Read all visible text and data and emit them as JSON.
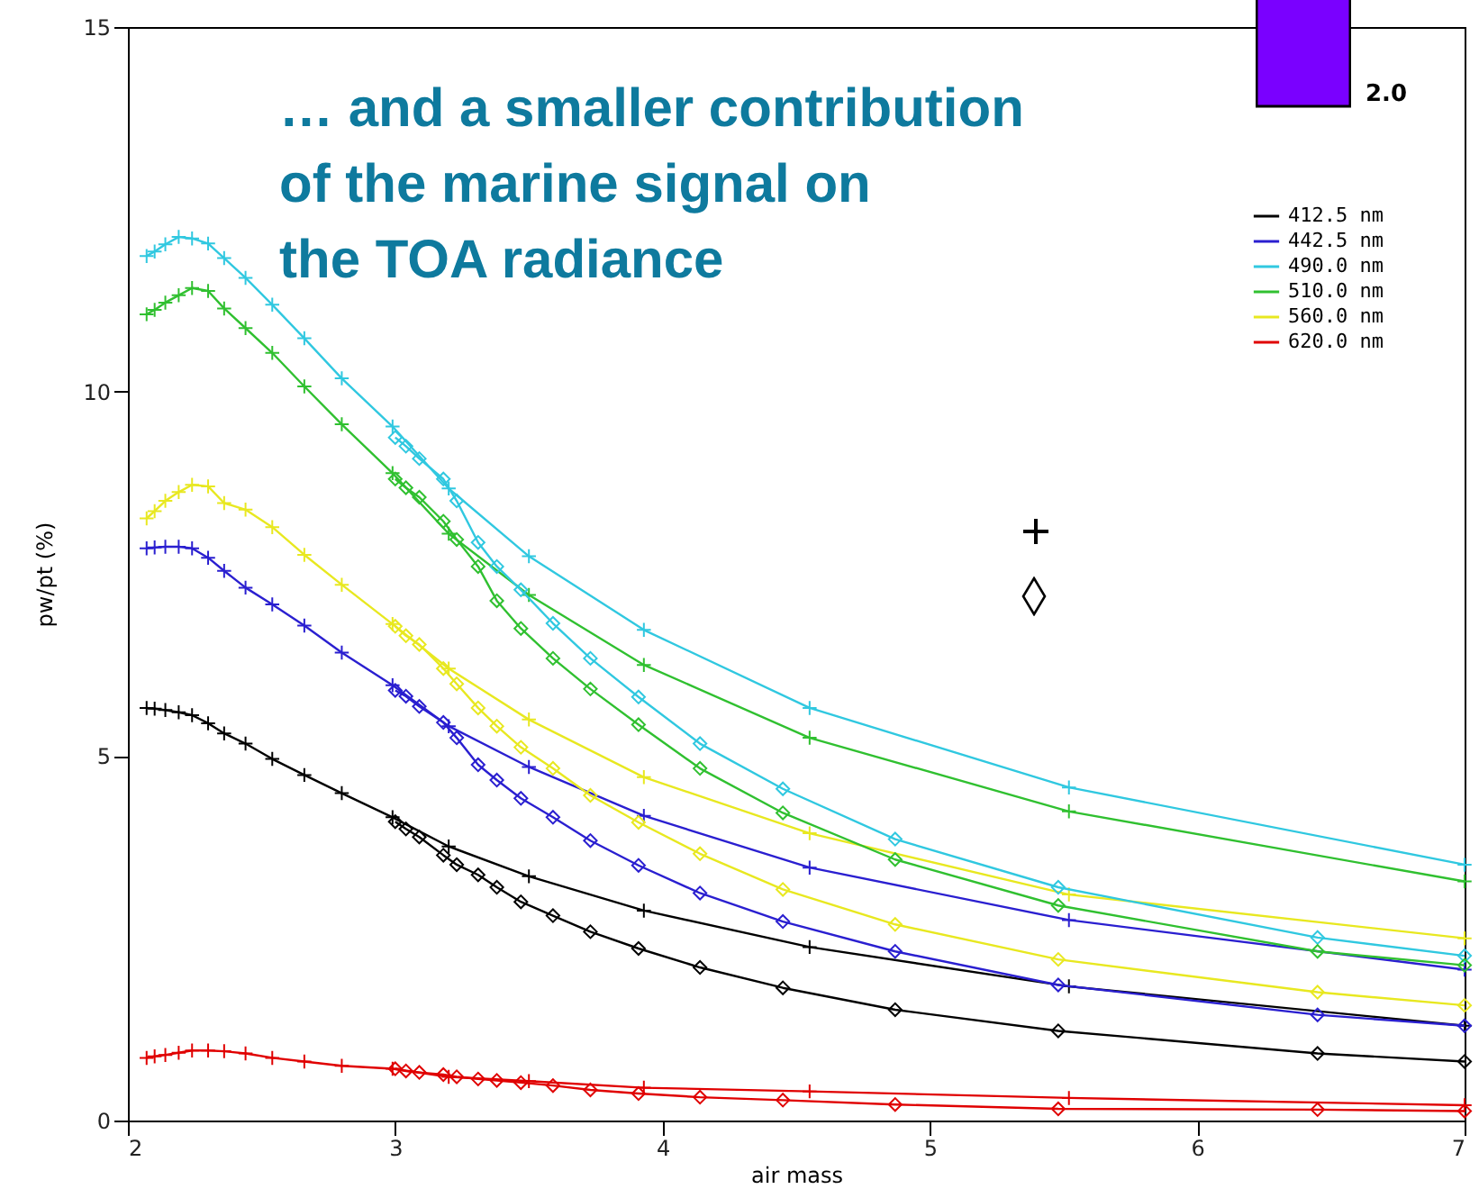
{
  "chart_data": {
    "type": "line",
    "xlabel": "air mass",
    "ylabel": "pw/pt (%)",
    "xlim": [
      2,
      7
    ],
    "ylim": [
      0,
      15
    ],
    "xticks": [
      2,
      3,
      4,
      5,
      6,
      7
    ],
    "yticks": [
      0,
      5,
      10,
      15
    ],
    "legend": "top right",
    "annotations": [
      "… and a smaller contribution\nof the marine signal on\nthe TOA radiance",
      "2.0"
    ],
    "series": [
      {
        "name": "412.5 nm",
        "color": "#000000",
        "marker": "cross",
        "x": [
          2.07,
          2.1,
          2.14,
          2.19,
          2.24,
          2.3,
          2.36,
          2.44,
          2.54,
          2.66,
          2.8,
          2.99,
          3.2,
          3.5,
          3.93,
          4.55,
          5.52,
          7
        ],
        "values": [
          5.66,
          5.65,
          5.63,
          5.6,
          5.56,
          5.45,
          5.31,
          5.17,
          4.96,
          4.74,
          4.49,
          4.16,
          3.76,
          3.35,
          2.88,
          2.38,
          1.84,
          1.3
        ]
      },
      {
        "name": "442.5 nm",
        "color": "#2a1fd0",
        "marker": "cross",
        "x": [
          2.07,
          2.1,
          2.14,
          2.19,
          2.24,
          2.3,
          2.36,
          2.44,
          2.54,
          2.66,
          2.8,
          2.99,
          3.2,
          3.5,
          3.93,
          4.55,
          5.52,
          7
        ],
        "values": [
          7.85,
          7.86,
          7.87,
          7.87,
          7.85,
          7.72,
          7.54,
          7.31,
          7.08,
          6.79,
          6.42,
          5.97,
          5.41,
          4.85,
          4.18,
          3.47,
          2.75,
          2.07
        ]
      },
      {
        "name": "490.0 nm",
        "color": "#30c8e0",
        "marker": "cross",
        "x": [
          2.07,
          2.1,
          2.14,
          2.19,
          2.24,
          2.3,
          2.36,
          2.44,
          2.54,
          2.66,
          2.8,
          2.99,
          3.2,
          3.5,
          3.93,
          4.55,
          5.52,
          7
        ],
        "values": [
          11.86,
          11.92,
          12.02,
          12.12,
          12.1,
          12.03,
          11.83,
          11.56,
          11.19,
          10.73,
          10.18,
          9.52,
          8.67,
          7.74,
          6.73,
          5.66,
          4.57,
          3.51
        ]
      },
      {
        "name": "510.0 nm",
        "color": "#30c030",
        "marker": "cross",
        "x": [
          2.07,
          2.1,
          2.14,
          2.19,
          2.24,
          2.3,
          2.36,
          2.44,
          2.54,
          2.66,
          2.8,
          2.99,
          3.2,
          3.5,
          3.93,
          4.55,
          5.52,
          7
        ],
        "values": [
          11.06,
          11.12,
          11.22,
          11.32,
          11.42,
          11.38,
          11.14,
          10.87,
          10.53,
          10.07,
          9.55,
          8.88,
          8.05,
          7.21,
          6.25,
          5.25,
          4.24,
          3.28
        ]
      },
      {
        "name": "560.0 nm",
        "color": "#e8e820",
        "marker": "cross",
        "x": [
          2.07,
          2.1,
          2.14,
          2.19,
          2.24,
          2.3,
          2.36,
          2.44,
          2.54,
          2.66,
          2.8,
          2.99,
          3.2,
          3.5,
          3.93,
          4.55,
          5.52,
          7
        ],
        "values": [
          8.26,
          8.36,
          8.5,
          8.62,
          8.72,
          8.7,
          8.47,
          8.38,
          8.14,
          7.76,
          7.35,
          6.81,
          6.2,
          5.5,
          4.71,
          3.94,
          3.1,
          2.5
        ]
      },
      {
        "name": "620.0 nm",
        "color": "#e00000",
        "marker": "cross",
        "x": [
          2.07,
          2.1,
          2.14,
          2.19,
          2.24,
          2.3,
          2.36,
          2.44,
          2.54,
          2.66,
          2.8,
          2.99,
          3.2,
          3.5,
          3.93,
          4.55,
          5.52,
          7
        ],
        "values": [
          0.86,
          0.88,
          0.9,
          0.93,
          0.96,
          0.96,
          0.95,
          0.92,
          0.86,
          0.81,
          0.75,
          0.71,
          0.6,
          0.54,
          0.45,
          0.4,
          0.31,
          0.21
        ]
      },
      {
        "color": "#000000",
        "marker": "diamond",
        "x": [
          3.0,
          3.04,
          3.09,
          3.18,
          3.23,
          3.31,
          3.38,
          3.47,
          3.59,
          3.73,
          3.91,
          4.14,
          4.45,
          4.87,
          5.48,
          6.45,
          7
        ],
        "values": [
          4.1,
          4.0,
          3.89,
          3.64,
          3.51,
          3.37,
          3.2,
          3.0,
          2.81,
          2.59,
          2.36,
          2.1,
          1.82,
          1.52,
          1.23,
          0.92,
          0.81
        ]
      },
      {
        "color": "#2a1fd0",
        "marker": "diamond",
        "x": [
          3.0,
          3.04,
          3.09,
          3.18,
          3.23,
          3.31,
          3.38,
          3.47,
          3.59,
          3.73,
          3.91,
          4.14,
          4.45,
          4.87,
          5.48,
          6.45,
          7
        ],
        "values": [
          5.9,
          5.82,
          5.68,
          5.46,
          5.25,
          4.88,
          4.67,
          4.42,
          4.16,
          3.84,
          3.5,
          3.12,
          2.73,
          2.32,
          1.86,
          1.45,
          1.3
        ]
      },
      {
        "color": "#30c8e0",
        "marker": "diamond",
        "x": [
          3.0,
          3.04,
          3.09,
          3.18,
          3.23,
          3.31,
          3.38,
          3.47,
          3.59,
          3.73,
          3.91,
          4.14,
          4.45,
          4.87,
          5.48,
          6.45,
          7
        ],
        "values": [
          9.37,
          9.25,
          9.08,
          8.8,
          8.5,
          7.93,
          7.6,
          7.28,
          6.82,
          6.34,
          5.81,
          5.17,
          4.55,
          3.86,
          3.2,
          2.51,
          2.26
        ]
      },
      {
        "color": "#30c030",
        "marker": "diamond",
        "x": [
          3.0,
          3.04,
          3.09,
          3.18,
          3.23,
          3.31,
          3.38,
          3.47,
          3.59,
          3.73,
          3.91,
          4.14,
          4.45,
          4.87,
          5.48,
          6.45,
          7
        ],
        "values": [
          8.8,
          8.68,
          8.55,
          8.22,
          7.97,
          7.6,
          7.13,
          6.75,
          6.34,
          5.92,
          5.43,
          4.83,
          4.22,
          3.58,
          2.95,
          2.32,
          2.13
        ]
      },
      {
        "color": "#e8e820",
        "marker": "diamond",
        "x": [
          3.0,
          3.04,
          3.09,
          3.18,
          3.23,
          3.31,
          3.38,
          3.47,
          3.59,
          3.73,
          3.91,
          4.14,
          4.45,
          4.87,
          5.48,
          6.45,
          7
        ],
        "values": [
          6.78,
          6.65,
          6.53,
          6.2,
          5.99,
          5.66,
          5.41,
          5.12,
          4.83,
          4.46,
          4.09,
          3.66,
          3.17,
          2.69,
          2.21,
          1.76,
          1.58
        ]
      },
      {
        "color": "#e00000",
        "marker": "diamond",
        "x": [
          3.0,
          3.04,
          3.09,
          3.18,
          3.23,
          3.31,
          3.38,
          3.47,
          3.59,
          3.73,
          3.91,
          4.14,
          4.45,
          4.87,
          5.48,
          6.45,
          7
        ],
        "values": [
          0.71,
          0.68,
          0.66,
          0.63,
          0.6,
          0.57,
          0.55,
          0.52,
          0.48,
          0.42,
          0.37,
          0.32,
          0.28,
          0.22,
          0.16,
          0.15,
          0.13
        ]
      }
    ]
  }
}
